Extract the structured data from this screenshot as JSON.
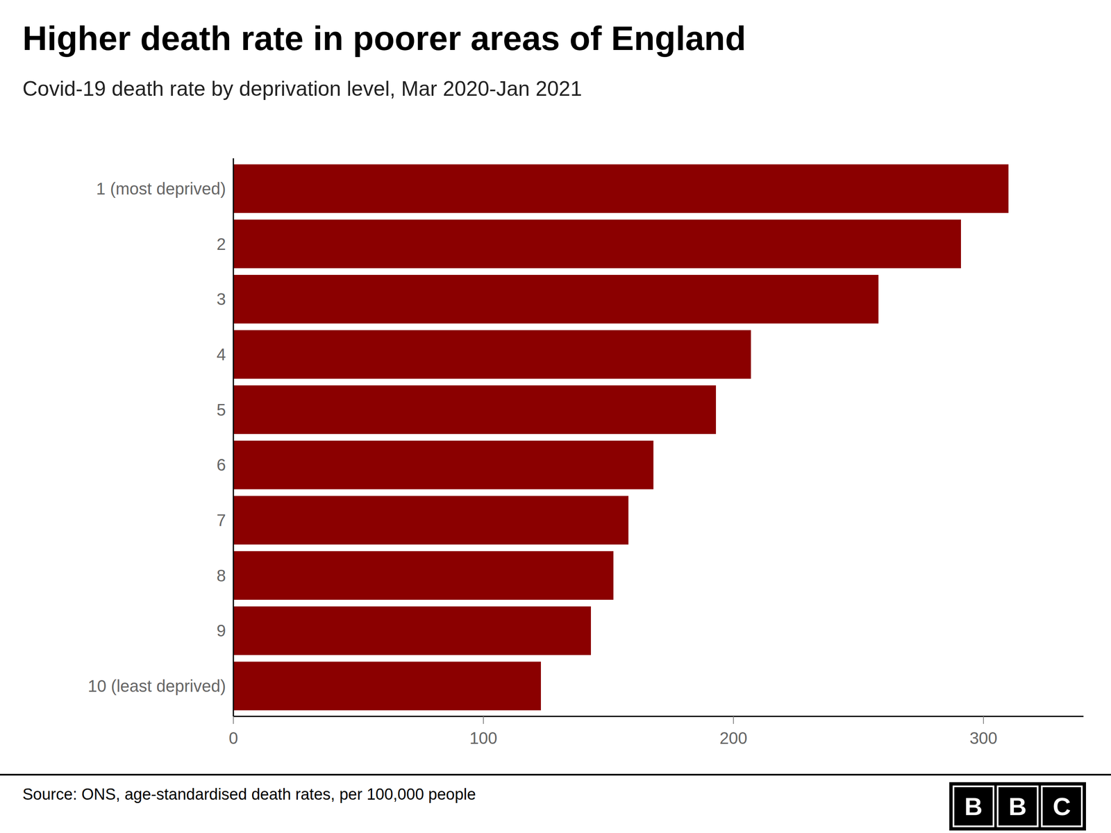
{
  "chart_data": {
    "type": "bar",
    "orientation": "horizontal",
    "title": "Higher death rate in poorer areas of England",
    "subtitle": "Covid-19 death rate by deprivation level, Mar 2020-Jan 2021",
    "source": "Source: ONS, age-standardised death rates, per 100,000 people",
    "logo": "BBC",
    "categories": [
      "1 (most deprived)",
      "2",
      "3",
      "4",
      "5",
      "6",
      "7",
      "8",
      "9",
      "10 (least deprived)"
    ],
    "values": [
      310,
      291,
      258,
      207,
      193,
      168,
      158,
      152,
      143,
      123
    ],
    "color": "#8B0000",
    "xlim": [
      0,
      340
    ],
    "xticks": [
      0,
      100,
      200,
      300
    ],
    "grid": false
  }
}
